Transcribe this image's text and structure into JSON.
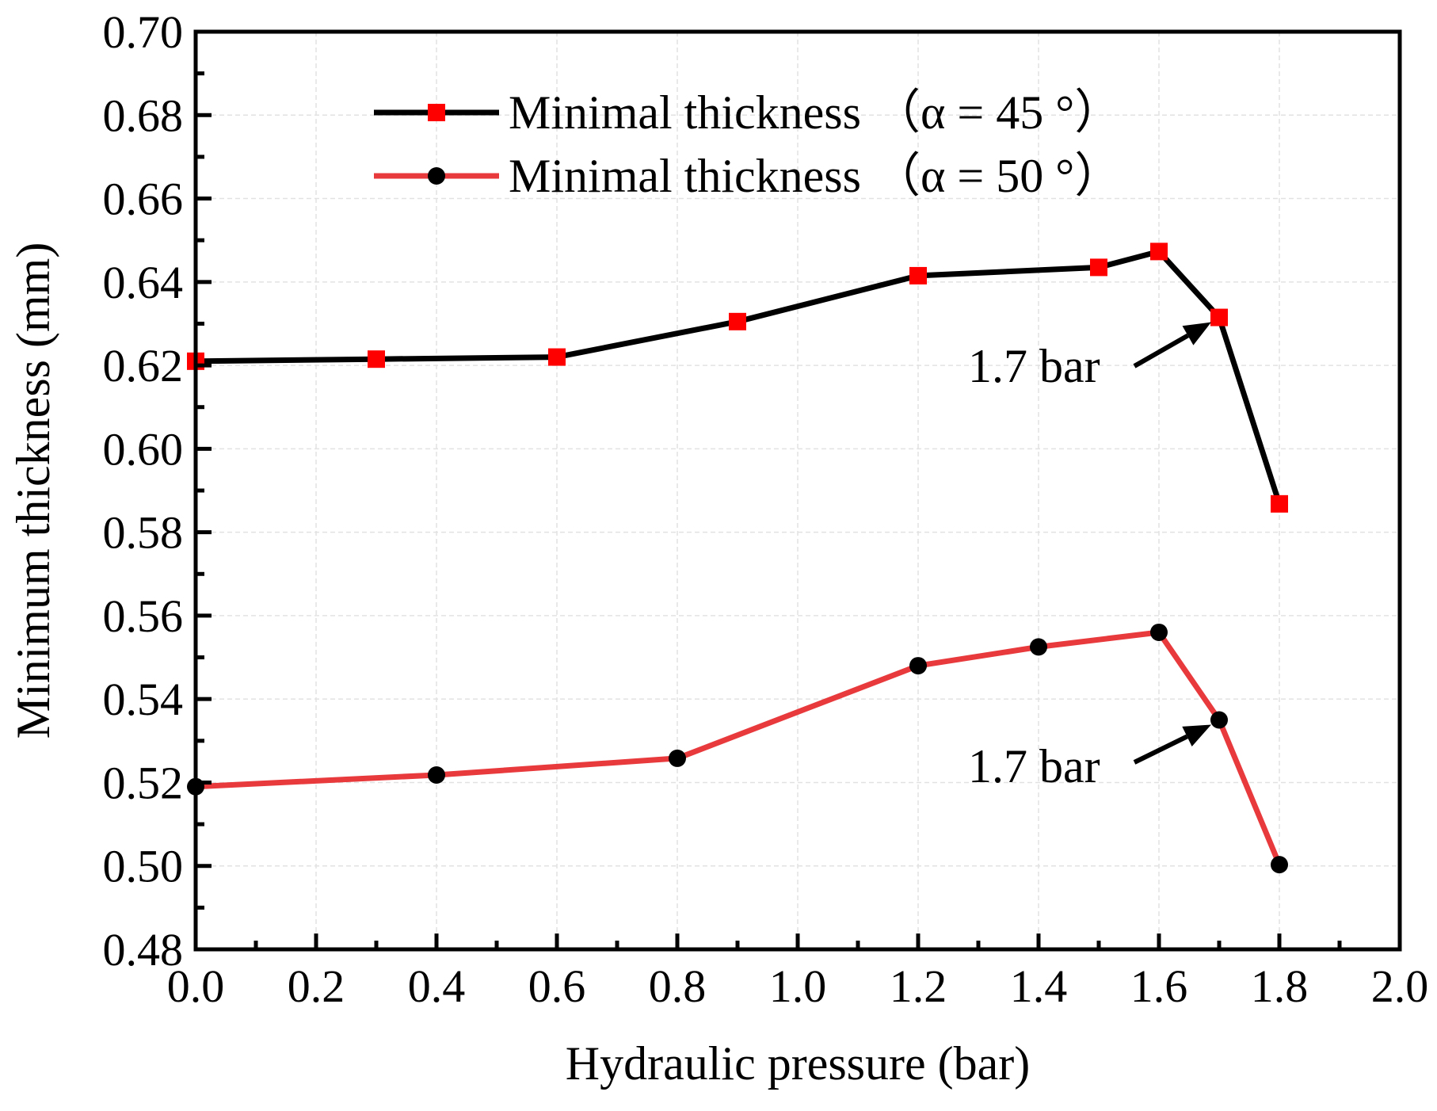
{
  "chart_data": {
    "type": "line",
    "title": "",
    "xlabel": "Hydraulic pressure (bar)",
    "ylabel": "Minimum thickness (mm)",
    "xlim": [
      0.0,
      2.0
    ],
    "ylim": [
      0.48,
      0.7
    ],
    "xticks": [
      0.0,
      0.2,
      0.4,
      0.6,
      0.8,
      1.0,
      1.2,
      1.4,
      1.6,
      1.8,
      2.0
    ],
    "xtick_labels": [
      "0.0",
      "0.2",
      "0.4",
      "0.6",
      "0.8",
      "1.0",
      "1.2",
      "1.4",
      "1.6",
      "1.8",
      "2.0"
    ],
    "yticks": [
      0.48,
      0.5,
      0.52,
      0.54,
      0.56,
      0.58,
      0.6,
      0.62,
      0.64,
      0.66,
      0.68,
      0.7
    ],
    "ytick_labels": [
      "0.48",
      "0.50",
      "0.52",
      "0.54",
      "0.56",
      "0.58",
      "0.60",
      "0.62",
      "0.64",
      "0.66",
      "0.68",
      "0.70"
    ],
    "grid": true,
    "legend_position": "top-center",
    "series": [
      {
        "name": "Minimal thickness （α = 45 °）",
        "line_color": "#000000",
        "marker": "square",
        "marker_color": "#ff0000",
        "x": [
          0.0,
          0.3,
          0.6,
          0.9,
          1.2,
          1.5,
          1.6,
          1.7,
          1.8
        ],
        "y": [
          0.621,
          0.6215,
          0.622,
          0.6305,
          0.6415,
          0.6435,
          0.6473,
          0.6315,
          0.5868
        ]
      },
      {
        "name": "Minimal thickness （α = 50 °）",
        "line_color": "#e8393d",
        "marker": "circle",
        "marker_color": "#000000",
        "x": [
          0.0,
          0.4,
          0.8,
          1.2,
          1.4,
          1.6,
          1.7,
          1.8
        ],
        "y": [
          0.519,
          0.5218,
          0.5258,
          0.548,
          0.5525,
          0.556,
          0.535,
          0.5003
        ]
      }
    ],
    "annotations": [
      {
        "text": "1.7 bar",
        "x": 1.7,
        "y": 0.6315
      },
      {
        "text": "1.7 bar",
        "x": 1.7,
        "y": 0.535
      }
    ]
  }
}
